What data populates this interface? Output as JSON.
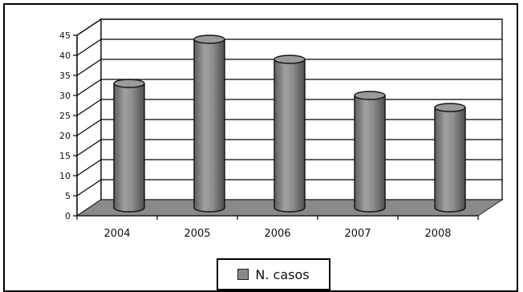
{
  "chart_data": {
    "type": "bar",
    "style": "3d-cylinder",
    "categories": [
      "2004",
      "2005",
      "2006",
      "2007",
      "2008"
    ],
    "series": [
      {
        "name": "N. casos",
        "values": [
          31,
          42,
          37,
          28,
          25
        ],
        "color": "#8a8a8a"
      }
    ],
    "ylim": [
      0,
      45
    ],
    "yticks": [
      0,
      5,
      10,
      15,
      20,
      25,
      30,
      35,
      40,
      45
    ],
    "ytick_labels": [
      "0",
      "5",
      "10",
      "15",
      "20",
      "25",
      "30",
      "35",
      "40",
      "45"
    ],
    "grid": true,
    "legend_position": "bottom",
    "floor_color": "#8a8a8a"
  }
}
